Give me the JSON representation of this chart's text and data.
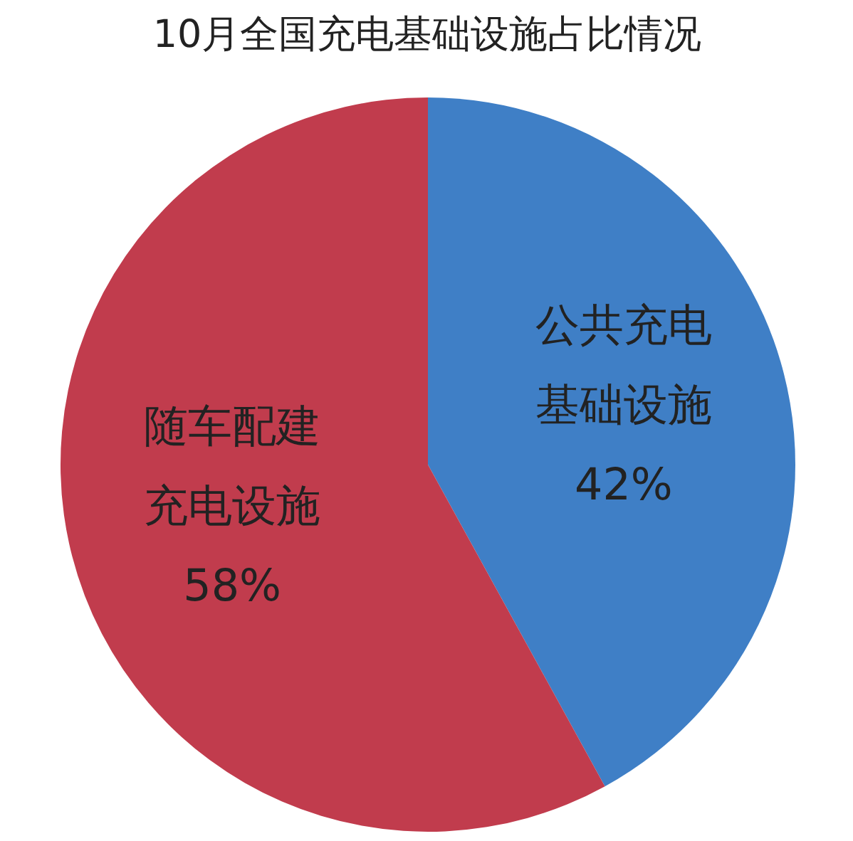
{
  "chart_data": {
    "type": "pie",
    "title": "10月全国充电基础设施占比情况",
    "categories": [
      "公共充电基础设施",
      "随车配建充电设施"
    ],
    "values": [
      42,
      58
    ],
    "colors": [
      "#3f7fc6",
      "#c13c4d"
    ],
    "value_labels": [
      "42%",
      "58%"
    ]
  }
}
